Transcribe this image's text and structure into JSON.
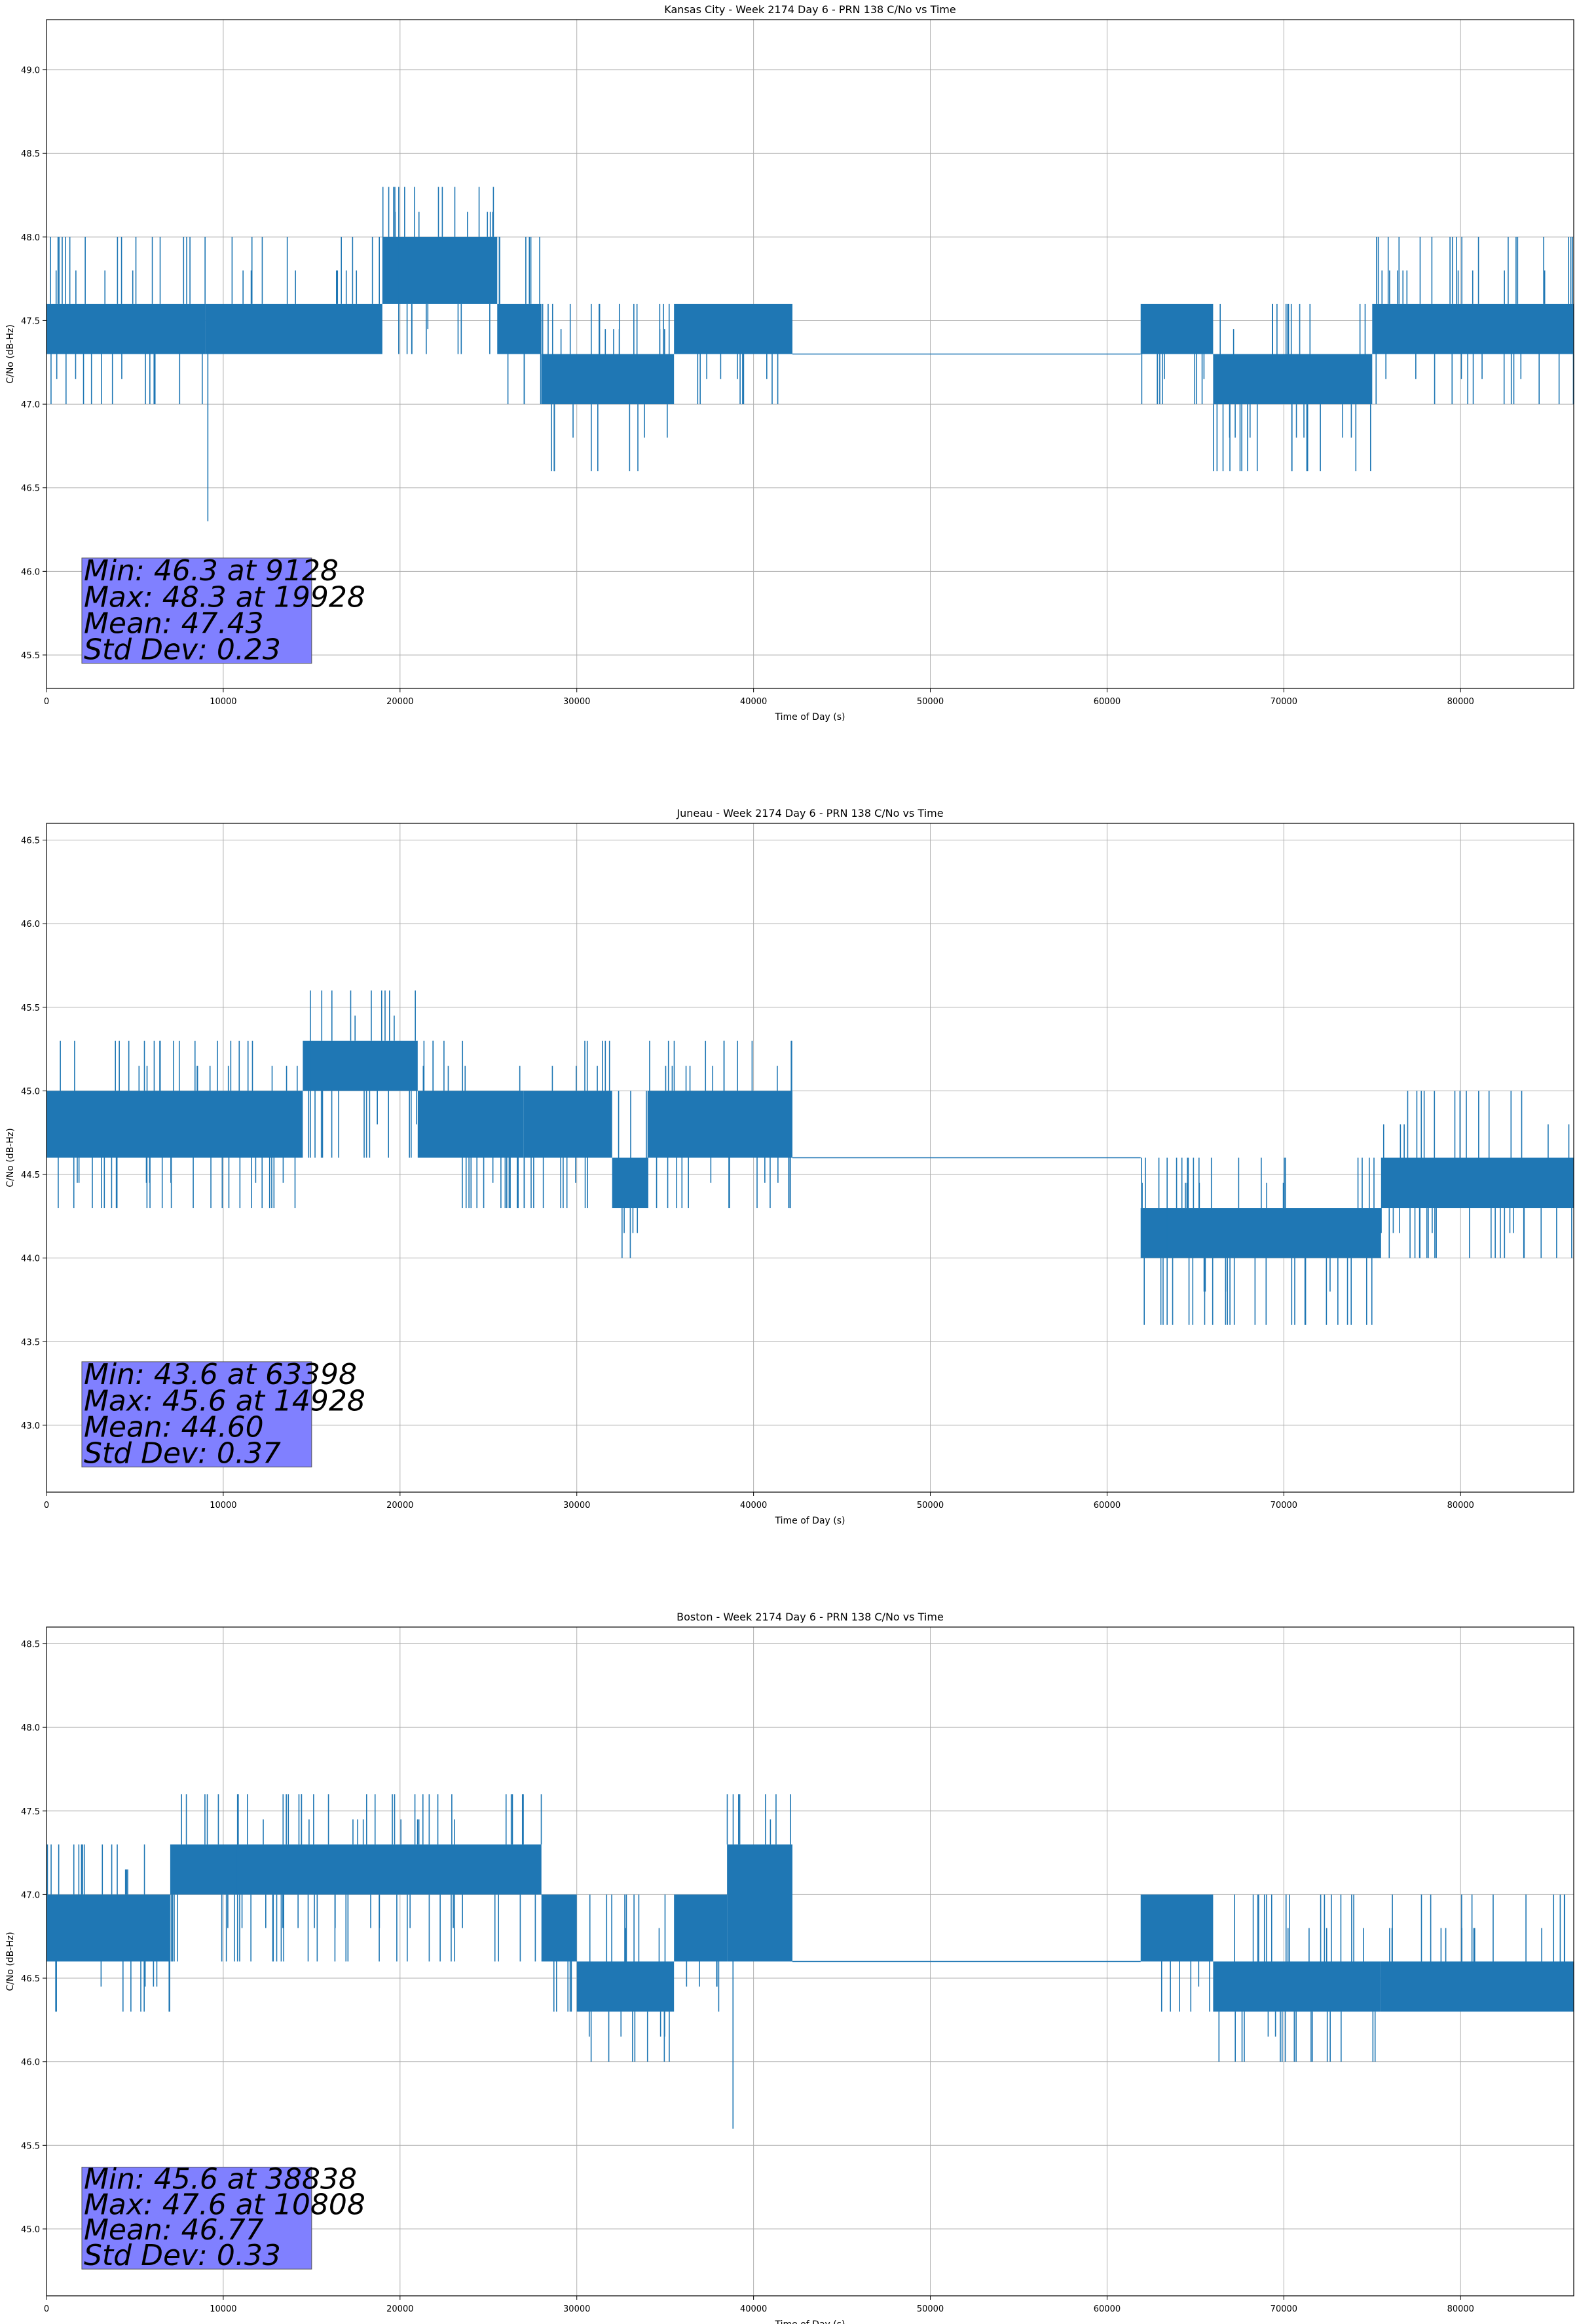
{
  "chart_data": [
    {
      "type": "line",
      "title": "Kansas City - Week 2174 Day 6 - PRN 138 C/No vs Time",
      "xlabel": "Time of Day (s)",
      "ylabel": "C/No (dB-Hz)",
      "xlim": [
        0,
        86400
      ],
      "ylim": [
        45.3,
        49.3
      ],
      "grid": true,
      "line_color": "#1f77b4",
      "xticks": [
        0,
        10000,
        20000,
        30000,
        40000,
        50000,
        60000,
        70000,
        80000
      ],
      "xtick_labels": [
        "0",
        "10000",
        "20000",
        "30000",
        "40000",
        "50000",
        "60000",
        "70000",
        "80000"
      ],
      "yticks": [
        45.5,
        46.0,
        46.5,
        47.0,
        47.5,
        48.0,
        48.5,
        49.0
      ],
      "ytick_labels": [
        "45.5",
        "46.0",
        "46.5",
        "47.0",
        "47.5",
        "48.0",
        "48.5",
        "49.0"
      ],
      "baseline": 47.3,
      "segments": [
        {
          "x": [
            0,
            9000
          ],
          "band": [
            47.3,
            47.6
          ],
          "spike_high": 48.0,
          "spike_low": 47.0
        },
        {
          "x": [
            9000,
            19000
          ],
          "band": [
            47.3,
            47.6
          ],
          "spike_high": 48.0,
          "spike_low": 47.3
        },
        {
          "x": [
            19000,
            25500
          ],
          "band": [
            47.6,
            48.0
          ],
          "spike_high": 48.3,
          "spike_low": 47.3
        },
        {
          "x": [
            25500,
            28000
          ],
          "band": [
            47.3,
            47.6
          ],
          "spike_high": 48.0,
          "spike_low": 47.0
        },
        {
          "x": [
            28000,
            35500
          ],
          "band": [
            47.0,
            47.3
          ],
          "spike_high": 47.6,
          "spike_low": 46.6
        },
        {
          "x": [
            35500,
            42200
          ],
          "band": [
            47.3,
            47.6
          ],
          "spike_high": 47.6,
          "spike_low": 47.0
        },
        {
          "x": [
            61900,
            66000
          ],
          "band": [
            47.3,
            47.6
          ],
          "spike_high": 47.6,
          "spike_low": 47.0
        },
        {
          "x": [
            66000,
            75000
          ],
          "band": [
            47.0,
            47.3
          ],
          "spike_high": 47.6,
          "spike_low": 46.6
        },
        {
          "x": [
            75000,
            86400
          ],
          "band": [
            47.3,
            47.6
          ],
          "spike_high": 48.0,
          "spike_low": 47.0
        }
      ],
      "spikes": [
        {
          "x": 9128,
          "y": 46.3
        },
        {
          "x": 19928,
          "y": 48.3
        }
      ],
      "stats": {
        "min_line": "Min: 46.3 at 9128",
        "max_line": "Max: 48.3 at 19928",
        "mean_line": "Mean: 47.43",
        "std_line": "Std Dev: 0.23"
      },
      "stats_box_color": "#8080ff",
      "stats_anchor": [
        2000,
        45.45,
        15000,
        46.08
      ]
    },
    {
      "type": "line",
      "title": "Juneau - Week 2174 Day 6 - PRN 138 C/No vs Time",
      "xlabel": "Time of Day (s)",
      "ylabel": "C/No (dB-Hz)",
      "xlim": [
        0,
        86400
      ],
      "ylim": [
        42.6,
        46.6
      ],
      "grid": true,
      "line_color": "#1f77b4",
      "xticks": [
        0,
        10000,
        20000,
        30000,
        40000,
        50000,
        60000,
        70000,
        80000
      ],
      "xtick_labels": [
        "0",
        "10000",
        "20000",
        "30000",
        "40000",
        "50000",
        "60000",
        "70000",
        "80000"
      ],
      "yticks": [
        43.0,
        43.5,
        44.0,
        44.5,
        45.0,
        45.5,
        46.0,
        46.5
      ],
      "ytick_labels": [
        "43.0",
        "43.5",
        "44.0",
        "44.5",
        "45.0",
        "45.5",
        "46.0",
        "46.5"
      ],
      "baseline": 44.6,
      "segments": [
        {
          "x": [
            0,
            14500
          ],
          "band": [
            44.6,
            45.0
          ],
          "spike_high": 45.3,
          "spike_low": 44.3
        },
        {
          "x": [
            14500,
            21000
          ],
          "band": [
            45.0,
            45.3
          ],
          "spike_high": 45.6,
          "spike_low": 44.6
        },
        {
          "x": [
            21000,
            27000
          ],
          "band": [
            44.6,
            45.0
          ],
          "spike_high": 45.3,
          "spike_low": 44.3
        },
        {
          "x": [
            27000,
            32000
          ],
          "band": [
            44.6,
            45.0
          ],
          "spike_high": 45.3,
          "spike_low": 44.3
        },
        {
          "x": [
            32000,
            34000
          ],
          "band": [
            44.3,
            44.6
          ],
          "spike_high": 45.0,
          "spike_low": 44.0
        },
        {
          "x": [
            34000,
            42200
          ],
          "band": [
            44.6,
            45.0
          ],
          "spike_high": 45.3,
          "spike_low": 44.3
        },
        {
          "x": [
            61900,
            75500
          ],
          "band": [
            44.0,
            44.3
          ],
          "spike_high": 44.6,
          "spike_low": 43.6
        },
        {
          "x": [
            75500,
            86400
          ],
          "band": [
            44.3,
            44.6
          ],
          "spike_high": 45.0,
          "spike_low": 44.0
        }
      ],
      "spikes": [
        {
          "x": 63398,
          "y": 43.6
        },
        {
          "x": 14928,
          "y": 45.6
        }
      ],
      "stats": {
        "min_line": "Min: 43.6 at 63398",
        "max_line": "Max: 45.6 at 14928",
        "mean_line": "Mean: 44.60",
        "std_line": "Std Dev: 0.37"
      },
      "stats_box_color": "#8080ff",
      "stats_anchor": [
        2000,
        42.75,
        15000,
        43.38
      ]
    },
    {
      "type": "line",
      "title": "Boston - Week 2174 Day 6 - PRN 138 C/No vs Time",
      "xlabel": "Time of Day (s)",
      "ylabel": "C/No (dB-Hz)",
      "xlim": [
        0,
        86400
      ],
      "ylim": [
        44.6,
        48.6
      ],
      "grid": true,
      "line_color": "#1f77b4",
      "xticks": [
        0,
        10000,
        20000,
        30000,
        40000,
        50000,
        60000,
        70000,
        80000
      ],
      "xtick_labels": [
        "0",
        "10000",
        "20000",
        "30000",
        "40000",
        "50000",
        "60000",
        "70000",
        "80000"
      ],
      "yticks": [
        45.0,
        45.5,
        46.0,
        46.5,
        47.0,
        47.5,
        48.0,
        48.5
      ],
      "ytick_labels": [
        "45.0",
        "45.5",
        "46.0",
        "46.5",
        "47.0",
        "47.5",
        "48.0",
        "48.5"
      ],
      "baseline": 46.6,
      "segments": [
        {
          "x": [
            0,
            7000
          ],
          "band": [
            46.6,
            47.0
          ],
          "spike_high": 47.3,
          "spike_low": 46.3
        },
        {
          "x": [
            7000,
            28000
          ],
          "band": [
            47.0,
            47.3
          ],
          "spike_high": 47.6,
          "spike_low": 46.6
        },
        {
          "x": [
            28000,
            30000
          ],
          "band": [
            46.6,
            47.0
          ],
          "spike_high": 47.0,
          "spike_low": 46.3
        },
        {
          "x": [
            30000,
            35500
          ],
          "band": [
            46.3,
            46.6
          ],
          "spike_high": 47.0,
          "spike_low": 46.0
        },
        {
          "x": [
            35500,
            38500
          ],
          "band": [
            46.6,
            47.0
          ],
          "spike_high": 47.0,
          "spike_low": 46.3
        },
        {
          "x": [
            38500,
            42200
          ],
          "band": [
            46.6,
            47.3
          ],
          "spike_high": 47.6,
          "spike_low": 46.6
        },
        {
          "x": [
            61900,
            66000
          ],
          "band": [
            46.6,
            47.0
          ],
          "spike_high": 47.0,
          "spike_low": 46.3
        },
        {
          "x": [
            66000,
            75500
          ],
          "band": [
            46.3,
            46.6
          ],
          "spike_high": 47.0,
          "spike_low": 46.0
        },
        {
          "x": [
            75500,
            86400
          ],
          "band": [
            46.3,
            46.6
          ],
          "spike_high": 47.0,
          "spike_low": 46.3
        }
      ],
      "spikes": [
        {
          "x": 38838,
          "y": 45.6
        },
        {
          "x": 10808,
          "y": 47.6
        }
      ],
      "stats": {
        "min_line": "Min: 45.6 at 38838",
        "max_line": "Max: 47.6 at 10808",
        "mean_line": "Mean: 46.77",
        "std_line": "Std Dev: 0.33"
      },
      "stats_box_color": "#8080ff",
      "stats_anchor": [
        2000,
        44.76,
        15000,
        45.37
      ]
    }
  ]
}
